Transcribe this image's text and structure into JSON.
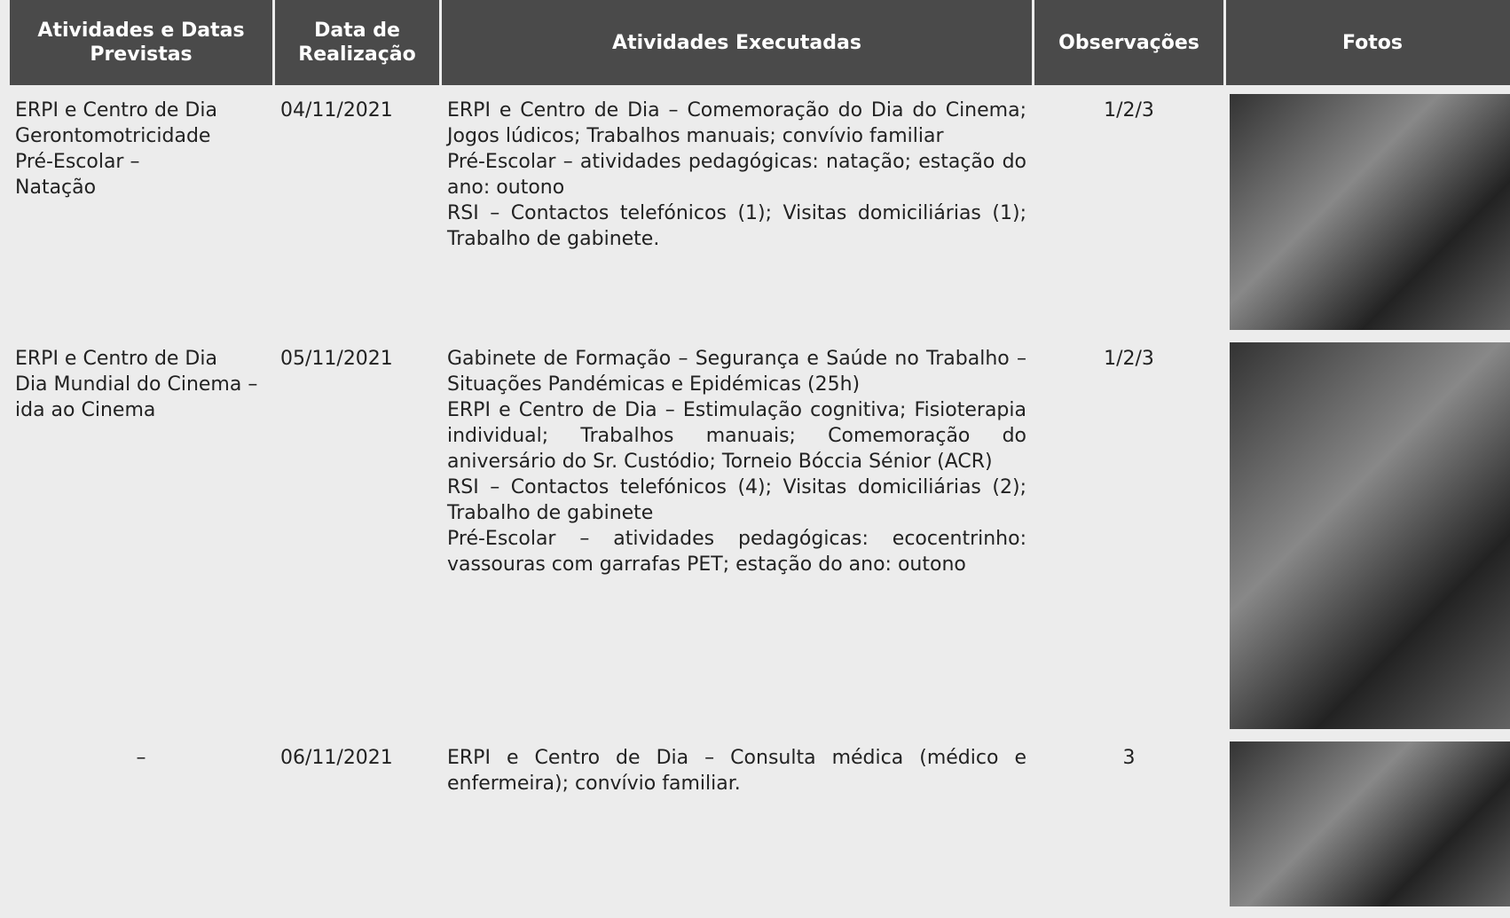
{
  "header": {
    "columns": [
      "Atividades e Datas Previstas",
      "Data de Realização",
      "Atividades Executadas",
      "Observações",
      "Fotos"
    ]
  },
  "rows": [
    {
      "planned": [
        "ERPI e Centro de Dia",
        "Gerontomotricidade",
        "Pré-Escolar –",
        "Natação"
      ],
      "date": "04/11/2021",
      "executed": [
        "ERPI e Centro de Dia – Comemoração do Dia do Cinema; Jogos lúdicos; Trabalhos manuais; convívio familiar",
        "Pré-Escolar – atividades pedagógicas: natação; estação do ano: outono",
        "RSI – Contactos telefónicos (1); Visitas domiciliárias (1); Trabalho de gabinete."
      ],
      "observations": "1/2/3"
    },
    {
      "planned": [
        "ERPI e Centro de Dia",
        "Dia Mundial do Cinema – ida ao Cinema"
      ],
      "date": "05/11/2021",
      "executed": [
        "Gabinete de Formação – Segurança e Saúde no Trabalho – Situações Pandémicas e Epidémicas (25h)",
        "ERPI e Centro de Dia – Estimulação cognitiva; Fisioterapia individual; Trabalhos manuais; Comemoração do aniversário do Sr. Custódio; Torneio Bóccia Sénior (ACR)",
        "RSI – Contactos telefónicos (4); Visitas domiciliárias (2); Trabalho de gabinete",
        "Pré-Escolar – atividades pedagógicas: ecocentrinho: vassouras com garrafas PET; estação do ano: outono"
      ],
      "observations": "1/2/3"
    },
    {
      "planned": [
        "–"
      ],
      "date": "06/11/2021",
      "executed": [
        "ERPI e Centro de Dia – Consulta médica (médico e enfermeira); convívio familiar."
      ],
      "observations": "3"
    }
  ]
}
